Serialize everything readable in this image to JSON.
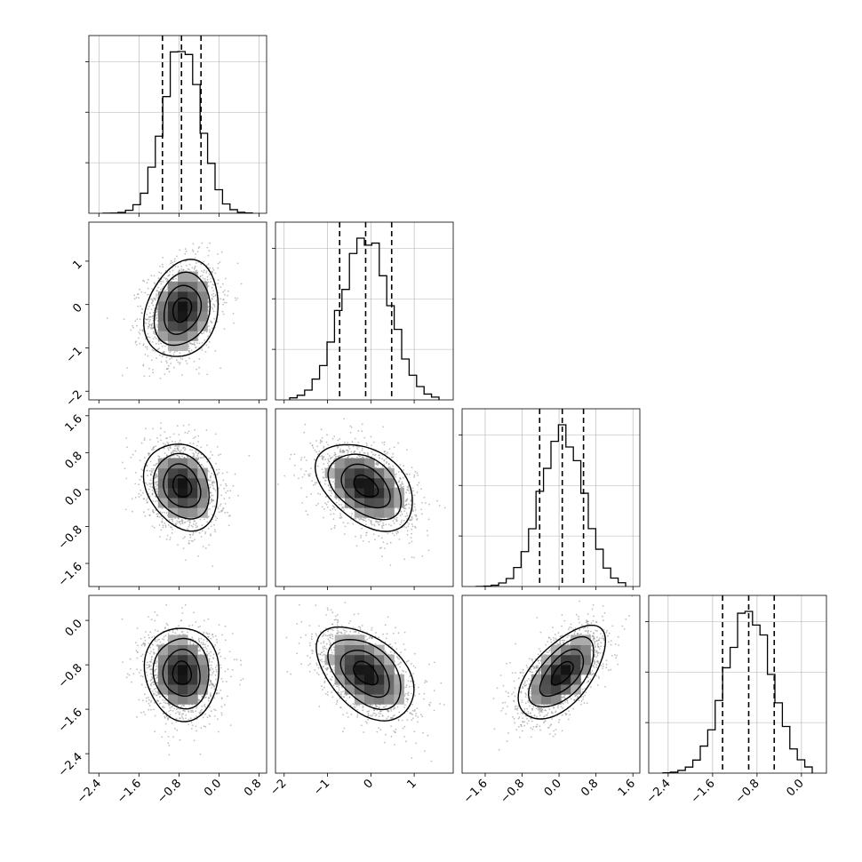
{
  "chart_data": {
    "type": "corner",
    "parameters": 4,
    "grid": true,
    "colors": {
      "line": "#000000",
      "scatter": "#8a8a8a",
      "grid": "#b0b0b0"
    },
    "axes": [
      {
        "range": [
          -2.6,
          0.95
        ],
        "ticks": [
          "−2.4",
          "−1.6",
          "−0.8",
          "0.0",
          "0.8"
        ],
        "tick_values": [
          -2.4,
          -1.6,
          -0.8,
          0.0,
          0.8
        ]
      },
      {
        "range": [
          -2.2,
          1.9
        ],
        "ticks": [
          "−2",
          "−1",
          "0",
          "1"
        ],
        "tick_values": [
          -2,
          -1,
          0,
          1
        ]
      },
      {
        "range": [
          -2.1,
          1.75
        ],
        "ticks": [
          "−1.6",
          "−0.8",
          "0.0",
          "0.8",
          "1.6"
        ],
        "tick_values": [
          -1.6,
          -0.8,
          0.0,
          0.8,
          1.6
        ]
      },
      {
        "range": [
          -2.75,
          0.45
        ],
        "ticks": [
          "−2.4",
          "−1.6",
          "−0.8",
          "0.0"
        ],
        "tick_values": [
          -2.4,
          -1.6,
          -0.8,
          0.0
        ]
      }
    ],
    "histograms": [
      {
        "mean": -0.74,
        "sd": 0.37,
        "quantiles": [
          -1.13,
          -0.75,
          -0.36
        ]
      },
      {
        "mean": -0.12,
        "sd": 0.56,
        "quantiles": [
          -0.72,
          -0.12,
          0.48
        ]
      },
      {
        "mean": 0.07,
        "sd": 0.47,
        "quantiles": [
          -0.42,
          0.07,
          0.53
        ]
      },
      {
        "mean": -0.95,
        "sd": 0.42,
        "quantiles": [
          -1.42,
          -0.95,
          -0.49
        ]
      }
    ],
    "pairs": [
      {
        "row": 1,
        "col": 0,
        "corr": 0.2
      },
      {
        "row": 2,
        "col": 0,
        "corr": -0.2
      },
      {
        "row": 2,
        "col": 1,
        "corr": -0.4
      },
      {
        "row": 3,
        "col": 0,
        "corr": -0.05
      },
      {
        "row": 3,
        "col": 1,
        "corr": -0.45
      },
      {
        "row": 3,
        "col": 2,
        "corr": 0.6
      }
    ]
  }
}
